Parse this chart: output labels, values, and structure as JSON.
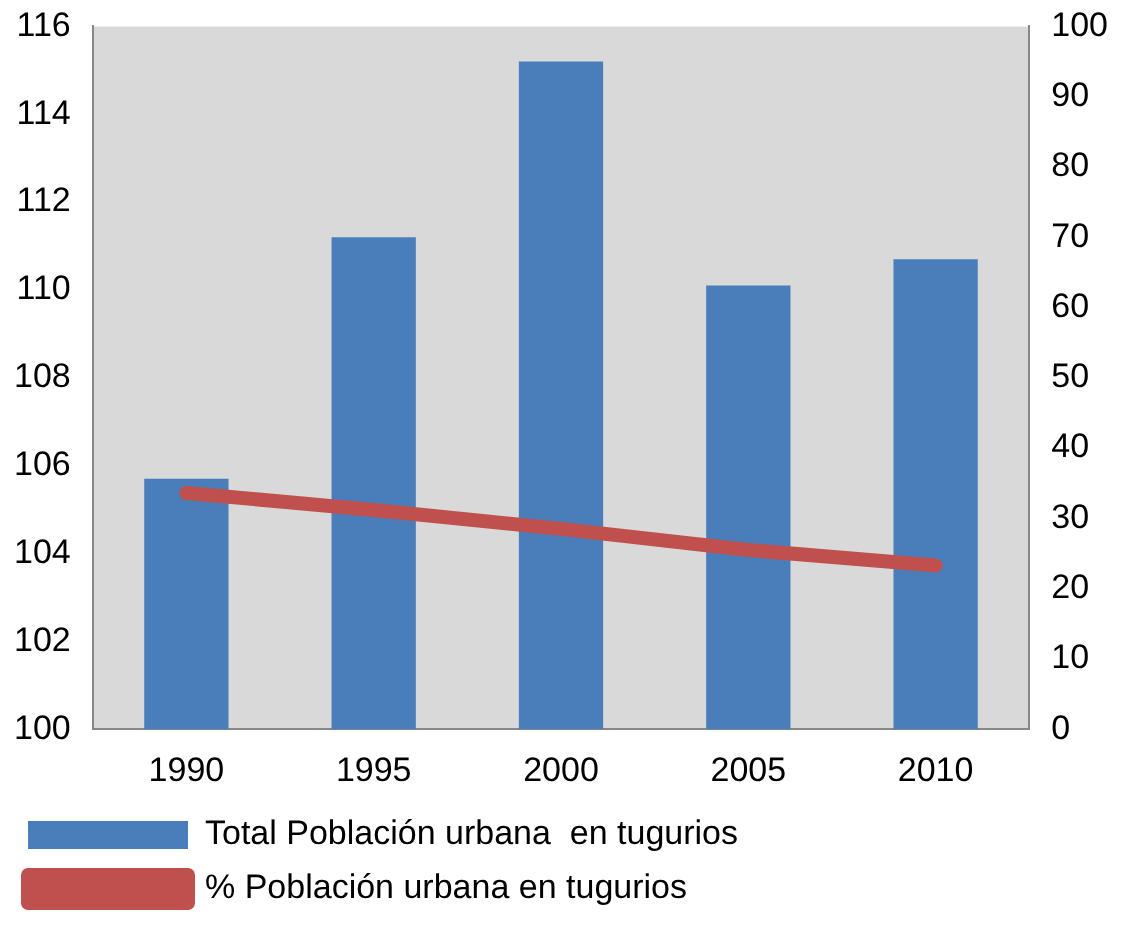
{
  "chart_data": {
    "type": "bar",
    "categories": [
      "1990",
      "1995",
      "2000",
      "2005",
      "2010"
    ],
    "series": [
      {
        "name": "Total Población urbana  en tugurios",
        "color": "#4a7ebb",
        "values": [
          105.7,
          111.2,
          115.2,
          110.1,
          110.7
        ]
      },
      {
        "name": "% Población urbana en tugurios",
        "type": "line",
        "axis": "y2",
        "color": "#c0504d",
        "values": [
          33.6,
          31.2,
          28.5,
          25.5,
          23.3
        ]
      }
    ],
    "ylim": [
      100,
      116
    ],
    "yticks": [
      100,
      102,
      104,
      106,
      108,
      110,
      112,
      114,
      116
    ],
    "y2lim": [
      0,
      100
    ],
    "y2ticks": [
      0,
      10,
      20,
      30,
      40,
      50,
      60,
      70,
      80,
      90,
      100
    ],
    "grid": false,
    "legend": "bottom",
    "marker": "none",
    "line_style": "solid"
  }
}
